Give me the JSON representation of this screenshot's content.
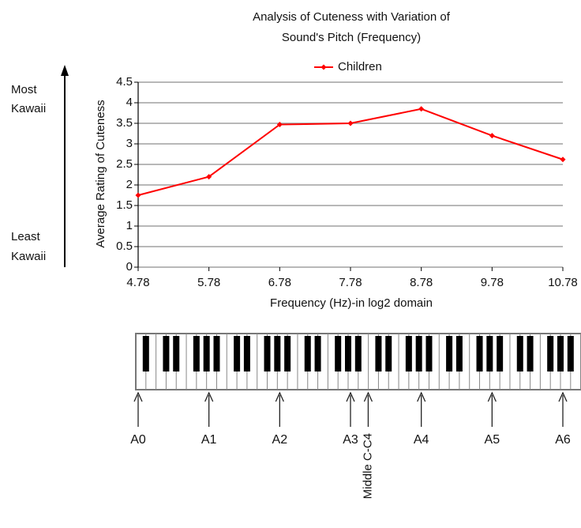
{
  "chart_data": {
    "type": "line",
    "title_lines": [
      "Analysis of Cuteness with Variation of",
      "Sound's Pitch (Frequency)"
    ],
    "x_label": "Frequency (Hz)-in log2 domain",
    "y_label": "Average Rating of Cuteness",
    "left_labels": {
      "top": [
        "Most",
        "Kawaii"
      ],
      "bottom": [
        "Least",
        "Kawaii"
      ]
    },
    "x": [
      4.78,
      5.78,
      6.78,
      7.78,
      8.78,
      9.78,
      10.78
    ],
    "series": [
      {
        "name": "Children",
        "color": "#ff0000",
        "values": [
          1.75,
          2.2,
          3.47,
          3.5,
          3.85,
          3.2,
          2.62
        ]
      }
    ],
    "xlim": [
      4.78,
      10.78
    ],
    "xticks": [
      4.78,
      5.78,
      6.78,
      7.78,
      8.78,
      9.78,
      10.78
    ],
    "ylim": [
      0,
      4.5
    ],
    "yticks": [
      0,
      0.5,
      1,
      1.5,
      2,
      2.5,
      3,
      3.5,
      4,
      4.5
    ],
    "grid": true,
    "legend": "top",
    "annotations": [
      {
        "text": "A0",
        "x": 4.78
      },
      {
        "text": "A1",
        "x": 5.78
      },
      {
        "text": "A2",
        "x": 6.78
      },
      {
        "text": "A3",
        "x": 7.78
      },
      {
        "text": "Middle C-C4",
        "x": 8.03
      },
      {
        "text": "A4",
        "x": 8.78
      },
      {
        "text": "A5",
        "x": 9.78
      },
      {
        "text": "A6",
        "x": 10.78
      }
    ]
  }
}
